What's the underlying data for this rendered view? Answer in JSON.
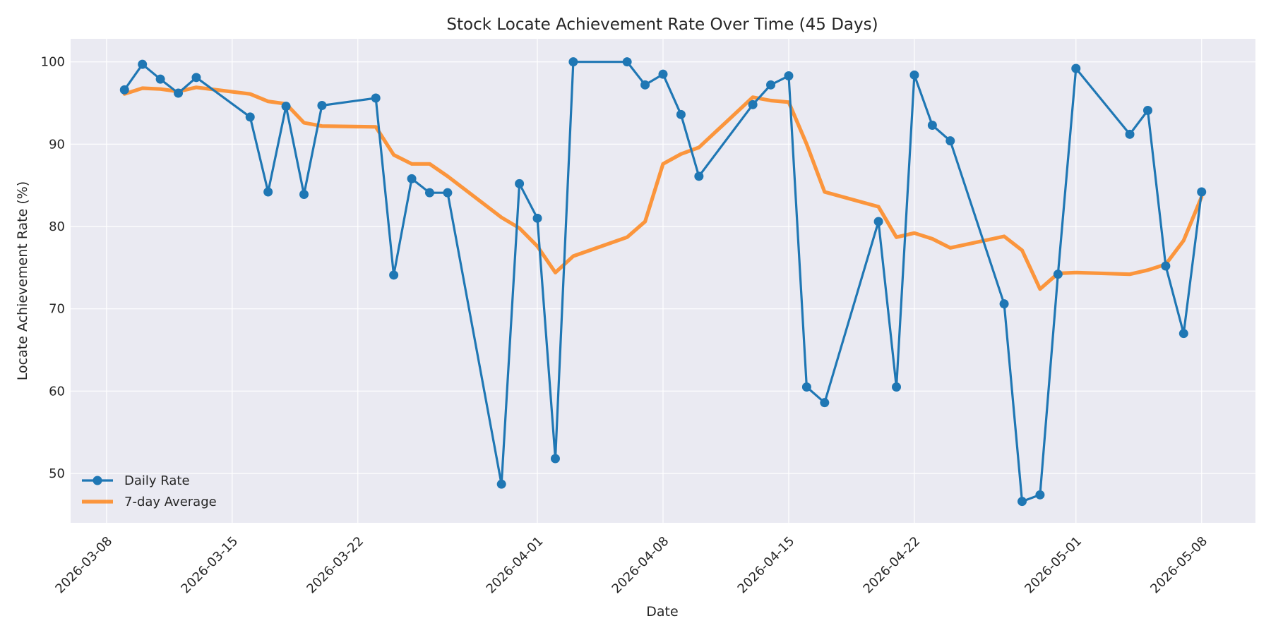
{
  "chart_data": {
    "type": "line",
    "title": "Stock Locate Achievement Rate Over Time (45 Days)",
    "xlabel": "Date",
    "ylabel": "Locate Achievement Rate (%)",
    "x_ticks": [
      "2026-03-08",
      "2026-03-15",
      "2026-03-22",
      "2026-04-01",
      "2026-04-08",
      "2026-04-15",
      "2026-04-22",
      "2026-05-01",
      "2026-05-08"
    ],
    "y_ticks": [
      50,
      60,
      70,
      80,
      90,
      100
    ],
    "xlim": [
      "2026-03-06",
      "2026-05-11"
    ],
    "ylim": [
      44,
      102.8
    ],
    "grid": true,
    "legend_position": "bottom-left",
    "x": [
      "2026-03-09",
      "2026-03-10",
      "2026-03-11",
      "2026-03-12",
      "2026-03-13",
      "2026-03-16",
      "2026-03-17",
      "2026-03-18",
      "2026-03-19",
      "2026-03-20",
      "2026-03-23",
      "2026-03-24",
      "2026-03-25",
      "2026-03-26",
      "2026-03-27",
      "2026-03-30",
      "2026-03-31",
      "2026-04-01",
      "2026-04-02",
      "2026-04-03",
      "2026-04-06",
      "2026-04-07",
      "2026-04-08",
      "2026-04-09",
      "2026-04-10",
      "2026-04-13",
      "2026-04-14",
      "2026-04-15",
      "2026-04-16",
      "2026-04-17",
      "2026-04-20",
      "2026-04-21",
      "2026-04-22",
      "2026-04-23",
      "2026-04-24",
      "2026-04-27",
      "2026-04-28",
      "2026-04-29",
      "2026-04-30",
      "2026-05-01",
      "2026-05-04",
      "2026-05-05",
      "2026-05-06",
      "2026-05-07",
      "2026-05-08"
    ],
    "series": [
      {
        "name": "Daily Rate",
        "color": "#1f77b4",
        "marker": "circle",
        "values": [
          96.6,
          99.7,
          97.9,
          96.2,
          98.1,
          93.3,
          84.2,
          94.6,
          83.9,
          94.7,
          95.6,
          74.1,
          85.8,
          84.1,
          84.1,
          48.7,
          85.2,
          81.0,
          51.8,
          100.0,
          100.0,
          97.2,
          98.5,
          93.6,
          86.1,
          94.8,
          97.2,
          98.3,
          60.5,
          58.6,
          80.6,
          60.5,
          98.4,
          92.3,
          90.4,
          70.6,
          46.6,
          47.4,
          74.2,
          99.2,
          91.2,
          94.1,
          75.2,
          67.0,
          84.2
        ]
      },
      {
        "name": "7-day Average",
        "color": "#ff7f0e",
        "marker": "none",
        "values": [
          96.1,
          96.8,
          96.7,
          96.4,
          96.9,
          96.1,
          95.2,
          94.9,
          92.6,
          92.2,
          92.1,
          88.7,
          87.6,
          87.6,
          86.1,
          81.1,
          79.8,
          77.6,
          74.4,
          76.4,
          78.7,
          80.6,
          87.6,
          88.8,
          89.6,
          95.7,
          95.3,
          95.1,
          90.0,
          84.2,
          82.4,
          78.7,
          79.2,
          78.5,
          77.4,
          78.8,
          77.1,
          72.4,
          74.3,
          74.4,
          74.2,
          74.7,
          75.4,
          78.3,
          83.6
        ]
      }
    ]
  }
}
